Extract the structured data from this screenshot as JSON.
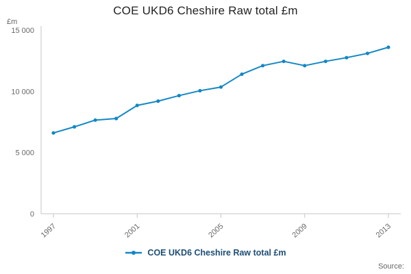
{
  "title": "COE UKD6 Cheshire Raw total £m",
  "y_axis_unit": "£m",
  "legend": {
    "label": "COE UKD6 Cheshire Raw total £m"
  },
  "source": "Source:",
  "colors": {
    "line": "#1387c5",
    "axis": "#c6c6c6",
    "tick_text": "#666666",
    "title_text": "#222222",
    "legend_text": "#1d4e74"
  },
  "chart_data": {
    "type": "line",
    "title": "COE UKD6 Cheshire Raw total £m",
    "xlabel": "",
    "ylabel": "£m",
    "x": [
      1997,
      1998,
      1999,
      2000,
      2001,
      2002,
      2003,
      2004,
      2005,
      2006,
      2007,
      2008,
      2009,
      2010,
      2011,
      2012,
      2013
    ],
    "series": [
      {
        "name": "COE UKD6 Cheshire Raw total £m",
        "values": [
          6600,
          7100,
          7650,
          7780,
          8850,
          9200,
          9650,
          10050,
          10350,
          11400,
          12100,
          12450,
          12100,
          12450,
          12750,
          13100,
          13600
        ]
      }
    ],
    "ylim": [
      0,
      15000
    ],
    "yticks": [
      0,
      5000,
      10000,
      15000
    ],
    "ytick_labels": [
      "0",
      "5 000",
      "10 000",
      "15 000"
    ],
    "xtick_labels": [
      "1997",
      "2001",
      "2005",
      "2009",
      "2013"
    ],
    "grid": false,
    "legend_position": "bottom",
    "marker": "dot"
  }
}
